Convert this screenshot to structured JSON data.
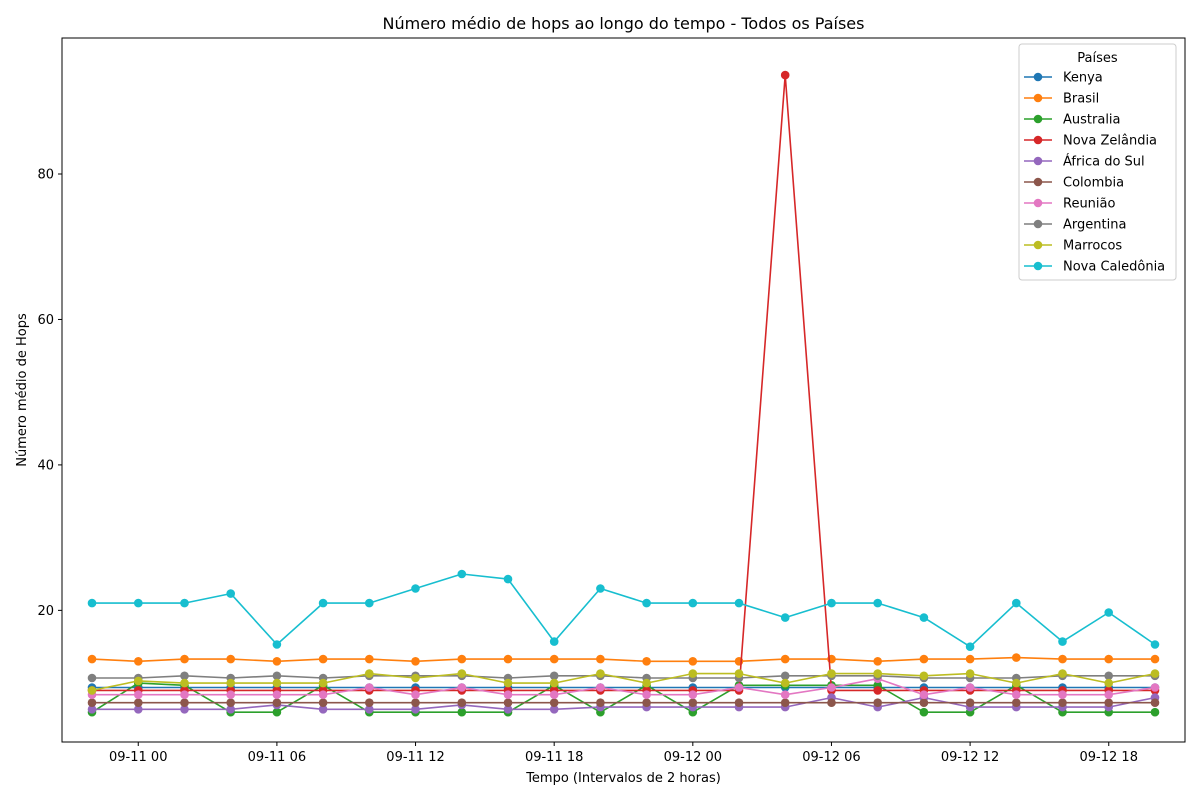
{
  "chart_data": {
    "type": "line",
    "title": "Número médio de hops ao longo do tempo - Todos os Países",
    "xlabel": "Tempo (Intervalos de 2 horas)",
    "ylabel": "Número médio de Hops",
    "x": [
      "09-10 22:00",
      "09-11 00:00",
      "09-11 02:00",
      "09-11 04:00",
      "09-11 06:00",
      "09-11 08:00",
      "09-11 10:00",
      "09-11 12:00",
      "09-11 14:00",
      "09-11 16:00",
      "09-11 18:00",
      "09-11 20:00",
      "09-11 22:00",
      "09-12 00:00",
      "09-12 02:00",
      "09-12 04:00",
      "09-12 06:00",
      "09-12 08:00",
      "09-12 10:00",
      "09-12 12:00",
      "09-12 14:00",
      "09-12 16:00",
      "09-12 18:00",
      "09-12 20:00"
    ],
    "xlim": [
      "09-10 20:42",
      "09-12 21:18"
    ],
    "x_ticks": [
      "09-11 00",
      "09-11 06",
      "09-11 12",
      "09-11 18",
      "09-12 00",
      "09-12 06",
      "09-12 12",
      "09-12 18"
    ],
    "ylim": [
      1.9,
      98.7
    ],
    "y_ticks": [
      20,
      40,
      60,
      80
    ],
    "grid": false,
    "legend": {
      "title": "Países",
      "position": "top-right"
    },
    "series": [
      {
        "name": "Kenya",
        "color": "#1f77b4",
        "values": [
          9.4,
          9.4,
          9.4,
          9.4,
          9.4,
          9.4,
          9.4,
          9.4,
          9.4,
          9.4,
          9.4,
          9.4,
          9.4,
          9.4,
          9.4,
          9.4,
          9.4,
          9.4,
          9.4,
          9.4,
          9.4,
          9.4,
          9.4,
          9.4
        ]
      },
      {
        "name": "Brasil",
        "color": "#ff7f0e",
        "values": [
          13.3,
          13.0,
          13.3,
          13.3,
          13.0,
          13.3,
          13.3,
          13.0,
          13.3,
          13.3,
          13.3,
          13.3,
          13.0,
          13.0,
          13.0,
          13.3,
          13.3,
          13.0,
          13.3,
          13.3,
          13.5,
          13.3,
          13.3,
          13.3
        ]
      },
      {
        "name": "Australia",
        "color": "#2ca02c",
        "values": [
          6.0,
          10.0,
          9.7,
          6.0,
          6.0,
          9.7,
          6.0,
          6.0,
          6.0,
          6.0,
          9.7,
          6.0,
          9.7,
          6.0,
          9.7,
          9.7,
          9.7,
          9.7,
          6.0,
          6.0,
          9.7,
          6.0,
          6.0,
          6.0
        ]
      },
      {
        "name": "Nova Zelândia",
        "color": "#d62728",
        "values": [
          9.0,
          9.0,
          9.0,
          9.0,
          9.0,
          9.0,
          9.0,
          9.0,
          9.0,
          9.0,
          9.0,
          9.0,
          9.0,
          9.0,
          9.0,
          93.6,
          9.0,
          9.0,
          9.0,
          9.0,
          9.0,
          9.0,
          9.0,
          9.0
        ]
      },
      {
        "name": "África do Sul",
        "color": "#9467bd",
        "values": [
          6.4,
          6.4,
          6.4,
          6.4,
          7.0,
          6.4,
          6.4,
          6.4,
          7.0,
          6.4,
          6.4,
          6.7,
          6.7,
          6.7,
          6.7,
          6.7,
          8.0,
          6.7,
          8.0,
          6.7,
          6.7,
          6.7,
          6.7,
          8.0
        ]
      },
      {
        "name": "Colombia",
        "color": "#8c564b",
        "values": [
          7.3,
          7.3,
          7.3,
          7.3,
          7.3,
          7.3,
          7.3,
          7.3,
          7.3,
          7.3,
          7.3,
          7.3,
          7.3,
          7.3,
          7.3,
          7.3,
          7.3,
          7.3,
          7.3,
          7.3,
          7.3,
          7.3,
          7.3,
          7.3
        ]
      },
      {
        "name": "Reunião",
        "color": "#e377c2",
        "values": [
          8.4,
          8.4,
          8.4,
          8.4,
          8.4,
          8.4,
          9.4,
          8.4,
          9.4,
          8.4,
          8.4,
          9.4,
          8.4,
          8.4,
          9.4,
          8.4,
          9.4,
          10.6,
          8.4,
          9.4,
          8.4,
          8.4,
          8.4,
          9.4
        ]
      },
      {
        "name": "Argentina",
        "color": "#7f7f7f",
        "values": [
          10.7,
          10.7,
          11.0,
          10.7,
          11.0,
          10.7,
          11.0,
          11.0,
          11.0,
          10.7,
          11.0,
          11.0,
          10.7,
          10.7,
          10.7,
          11.0,
          11.0,
          11.0,
          10.7,
          10.7,
          10.7,
          11.0,
          11.0,
          11.0
        ]
      },
      {
        "name": "Marrocos",
        "color": "#bcbd22",
        "values": [
          9.0,
          10.3,
          10.0,
          10.0,
          10.0,
          10.0,
          11.3,
          10.7,
          11.3,
          10.0,
          10.0,
          11.3,
          10.0,
          11.3,
          11.3,
          10.0,
          11.3,
          11.3,
          11.0,
          11.3,
          10.0,
          11.3,
          10.0,
          11.3
        ]
      },
      {
        "name": "Nova Caledônia",
        "color": "#17becf",
        "values": [
          21.0,
          21.0,
          21.0,
          22.3,
          15.3,
          21.0,
          21.0,
          23.0,
          25.0,
          24.3,
          15.7,
          23.0,
          21.0,
          21.0,
          21.0,
          19.0,
          21.0,
          21.0,
          19.0,
          15.0,
          21.0,
          15.7,
          19.7,
          15.3
        ]
      }
    ]
  }
}
